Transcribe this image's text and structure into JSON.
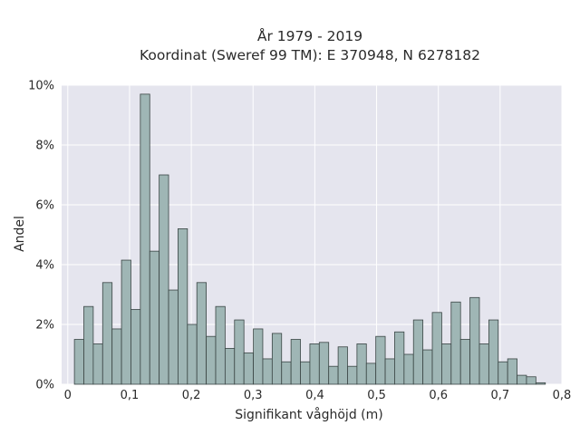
{
  "chart_data": {
    "type": "bar",
    "title": "År 1979 - 2019",
    "subtitle": "Koordinat (Sweref 99 TM): E 370948, N 6278182",
    "xlabel": "Signifikant våghöjd (m)",
    "ylabel": "Andel",
    "xlim": [
      -0.01,
      0.8
    ],
    "ylim": [
      0,
      10
    ],
    "x_ticks": [
      "0",
      "0,1",
      "0,2",
      "0,3",
      "0,4",
      "0,5",
      "0,6",
      "0,7",
      "0,8"
    ],
    "y_ticks": [
      "0%",
      "2%",
      "4%",
      "6%",
      "8%",
      "10%"
    ],
    "grid": true,
    "bin_width": 0.01525,
    "bin_start": 0.0107,
    "values": [
      1.5,
      2.6,
      1.35,
      3.4,
      1.85,
      4.15,
      2.5,
      9.7,
      4.45,
      7.0,
      3.15,
      5.2,
      2.0,
      3.4,
      1.6,
      2.6,
      1.2,
      2.15,
      1.05,
      1.85,
      0.85,
      1.7,
      0.75,
      1.5,
      0.75,
      1.35,
      1.4,
      0.6,
      1.25,
      0.6,
      1.35,
      0.7,
      1.6,
      0.85,
      1.75,
      1.0,
      2.15,
      1.15,
      2.4,
      1.35,
      2.75,
      1.5,
      2.9,
      1.35,
      2.15,
      0.75,
      0.85,
      0.3,
      0.25,
      0.05
    ],
    "colors": {
      "bar": "#9fb6b5",
      "bar_edge": "#3a4544",
      "plot_bg": "#e5e5ee",
      "grid": "#ffffff"
    }
  }
}
